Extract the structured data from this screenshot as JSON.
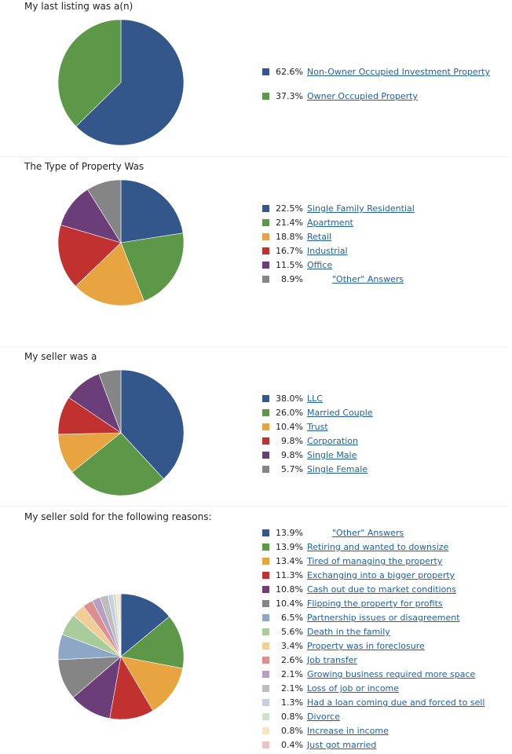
{
  "charts": [
    {
      "title": "My last listing was a(n)",
      "chart_data": {
        "type": "pie",
        "slices": [
          {
            "label": "Non-Owner Occupied Investment Property",
            "pct_label": "62.6%",
            "value": 62.6,
            "color": "#34578b"
          },
          {
            "label": "Owner Occupied Property",
            "pct_label": "37.3%",
            "value": 37.3,
            "color": "#5c9847"
          }
        ]
      }
    },
    {
      "title": "The Type of Property Was",
      "chart_data": {
        "type": "pie",
        "slices": [
          {
            "label": "Single Family Residential",
            "pct_label": "22.5%",
            "value": 22.5,
            "color": "#34578b"
          },
          {
            "label": "Apartment",
            "pct_label": "21.4%",
            "value": 21.4,
            "color": "#5c9847"
          },
          {
            "label": "Retail",
            "pct_label": "18.8%",
            "value": 18.8,
            "color": "#e8a440"
          },
          {
            "label": "Industrial",
            "pct_label": "16.7%",
            "value": 16.7,
            "color": "#c0312f"
          },
          {
            "label": "Office",
            "pct_label": "11.5%",
            "value": 11.5,
            "color": "#6b3e7a"
          },
          {
            "label": "\"Other\" Answers",
            "pct_label": "8.9%",
            "value": 8.9,
            "color": "#858585",
            "indent": true
          }
        ]
      }
    },
    {
      "title": "My seller was a",
      "chart_data": {
        "type": "pie",
        "slices": [
          {
            "label": "LLC",
            "pct_label": "38.0%",
            "value": 38.0,
            "color": "#34578b"
          },
          {
            "label": "Married Couple",
            "pct_label": "26.0%",
            "value": 26.0,
            "color": "#5c9847"
          },
          {
            "label": "Trust",
            "pct_label": "10.4%",
            "value": 10.4,
            "color": "#e8a440"
          },
          {
            "label": "Corporation",
            "pct_label": "9.8%",
            "value": 9.8,
            "color": "#c0312f"
          },
          {
            "label": "Single Male",
            "pct_label": "9.8%",
            "value": 9.8,
            "color": "#6b3e7a"
          },
          {
            "label": "Single Female",
            "pct_label": "5.7%",
            "value": 5.7,
            "color": "#858585"
          }
        ]
      }
    },
    {
      "title": "My seller sold for the following reasons:",
      "chart_data": {
        "type": "pie",
        "slices": [
          {
            "label": "\"Other\" Answers",
            "pct_label": "13.9%",
            "value": 13.9,
            "color": "#34578b",
            "indent": true
          },
          {
            "label": "Retiring and wanted to downsize",
            "pct_label": "13.9%",
            "value": 13.9,
            "color": "#5c9847"
          },
          {
            "label": "Tired of managing the property",
            "pct_label": "13.4%",
            "value": 13.4,
            "color": "#e8a440"
          },
          {
            "label": "Exchanging into a bigger property",
            "pct_label": "11.3%",
            "value": 11.3,
            "color": "#c0312f"
          },
          {
            "label": "Cash out due to market conditions",
            "pct_label": "10.8%",
            "value": 10.8,
            "color": "#6b3e7a"
          },
          {
            "label": "Flipping the property for profits",
            "pct_label": "10.4%",
            "value": 10.4,
            "color": "#858585"
          },
          {
            "label": "Partnership issues or disagreement",
            "pct_label": "6.5%",
            "value": 6.5,
            "color": "#8fa7c7"
          },
          {
            "label": "Death in the family",
            "pct_label": "5.6%",
            "value": 5.6,
            "color": "#a9cc9b"
          },
          {
            "label": "Property was in foreclosure",
            "pct_label": "3.4%",
            "value": 3.4,
            "color": "#f2ce96"
          },
          {
            "label": "Job transfer",
            "pct_label": "2.6%",
            "value": 2.6,
            "color": "#dc8f8e"
          },
          {
            "label": "Growing business required more space",
            "pct_label": "2.1%",
            "value": 2.1,
            "color": "#b79fc2"
          },
          {
            "label": "Loss of job or income",
            "pct_label": "2.1%",
            "value": 2.1,
            "color": "#bdbdbd"
          },
          {
            "label": "Had a loan coming due and forced to sell",
            "pct_label": "1.3%",
            "value": 1.3,
            "color": "#c5d0df"
          },
          {
            "label": "Divorce",
            "pct_label": "0.8%",
            "value": 0.8,
            "color": "#cfe2c8"
          },
          {
            "label": "Increase in income",
            "pct_label": "0.8%",
            "value": 0.8,
            "color": "#f8e3c2"
          },
          {
            "label": "Just got married",
            "pct_label": "0.4%",
            "value": 0.4,
            "color": "#ecc4c4"
          }
        ]
      }
    }
  ]
}
